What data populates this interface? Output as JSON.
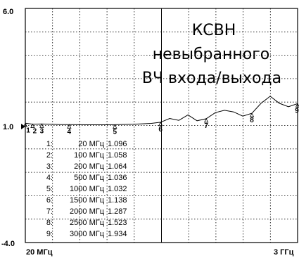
{
  "chart_data": {
    "type": "line",
    "title": [
      "КСВН",
      "невыбранного",
      "ВЧ входа/выхода"
    ],
    "xlabel": "",
    "ylabel": "",
    "x_tick_labels": {
      "left": "20 МГц",
      "right": "3 ГГц"
    },
    "y_tick_labels": {
      "top": "6.0",
      "ref": "1.0",
      "bottom": "-4.0"
    },
    "xlim_mhz": [
      20,
      3000
    ],
    "ylim": [
      -4.0,
      6.0
    ],
    "grid": true,
    "series": [
      {
        "x": [
          20,
          100,
          200,
          300,
          400,
          500,
          700,
          900,
          1000,
          1200,
          1400,
          1500,
          1600,
          1700,
          1800,
          1900,
          2000,
          2100,
          2200,
          2300,
          2400,
          2500,
          2600,
          2700,
          2800,
          2900,
          3000
        ],
        "values": [
          1.096,
          1.058,
          1.064,
          1.05,
          1.04,
          1.036,
          1.03,
          1.03,
          1.032,
          1.05,
          1.09,
          1.138,
          1.3,
          1.22,
          1.45,
          1.2,
          1.287,
          1.55,
          1.65,
          1.58,
          1.4,
          1.523,
          1.95,
          2.25,
          1.95,
          1.8,
          1.934
        ]
      }
    ],
    "markers": [
      {
        "num": "1",
        "x": 20,
        "freq": "20 МГц",
        "value": "1.096"
      },
      {
        "num": "2",
        "x": 100,
        "freq": "100 МГц",
        "value": "1.058"
      },
      {
        "num": "3",
        "x": 200,
        "freq": "200 МГц",
        "value": "1.064"
      },
      {
        "num": "4",
        "x": 500,
        "freq": "500 МГц",
        "value": "1.036"
      },
      {
        "num": "5",
        "x": 1000,
        "freq": "1000 МГц",
        "value": "1.032"
      },
      {
        "num": "6",
        "x": 1500,
        "freq": "1500 МГц",
        "value": "1.138"
      },
      {
        "num": "7",
        "x": 2000,
        "freq": "2000 МГц",
        "value": "1.287"
      },
      {
        "num": "8",
        "x": 2500,
        "freq": "2500 МГц",
        "value": "1.523"
      },
      {
        "num": "9",
        "x": 3000,
        "freq": "3000 МГц",
        "value": "1.934"
      }
    ]
  }
}
